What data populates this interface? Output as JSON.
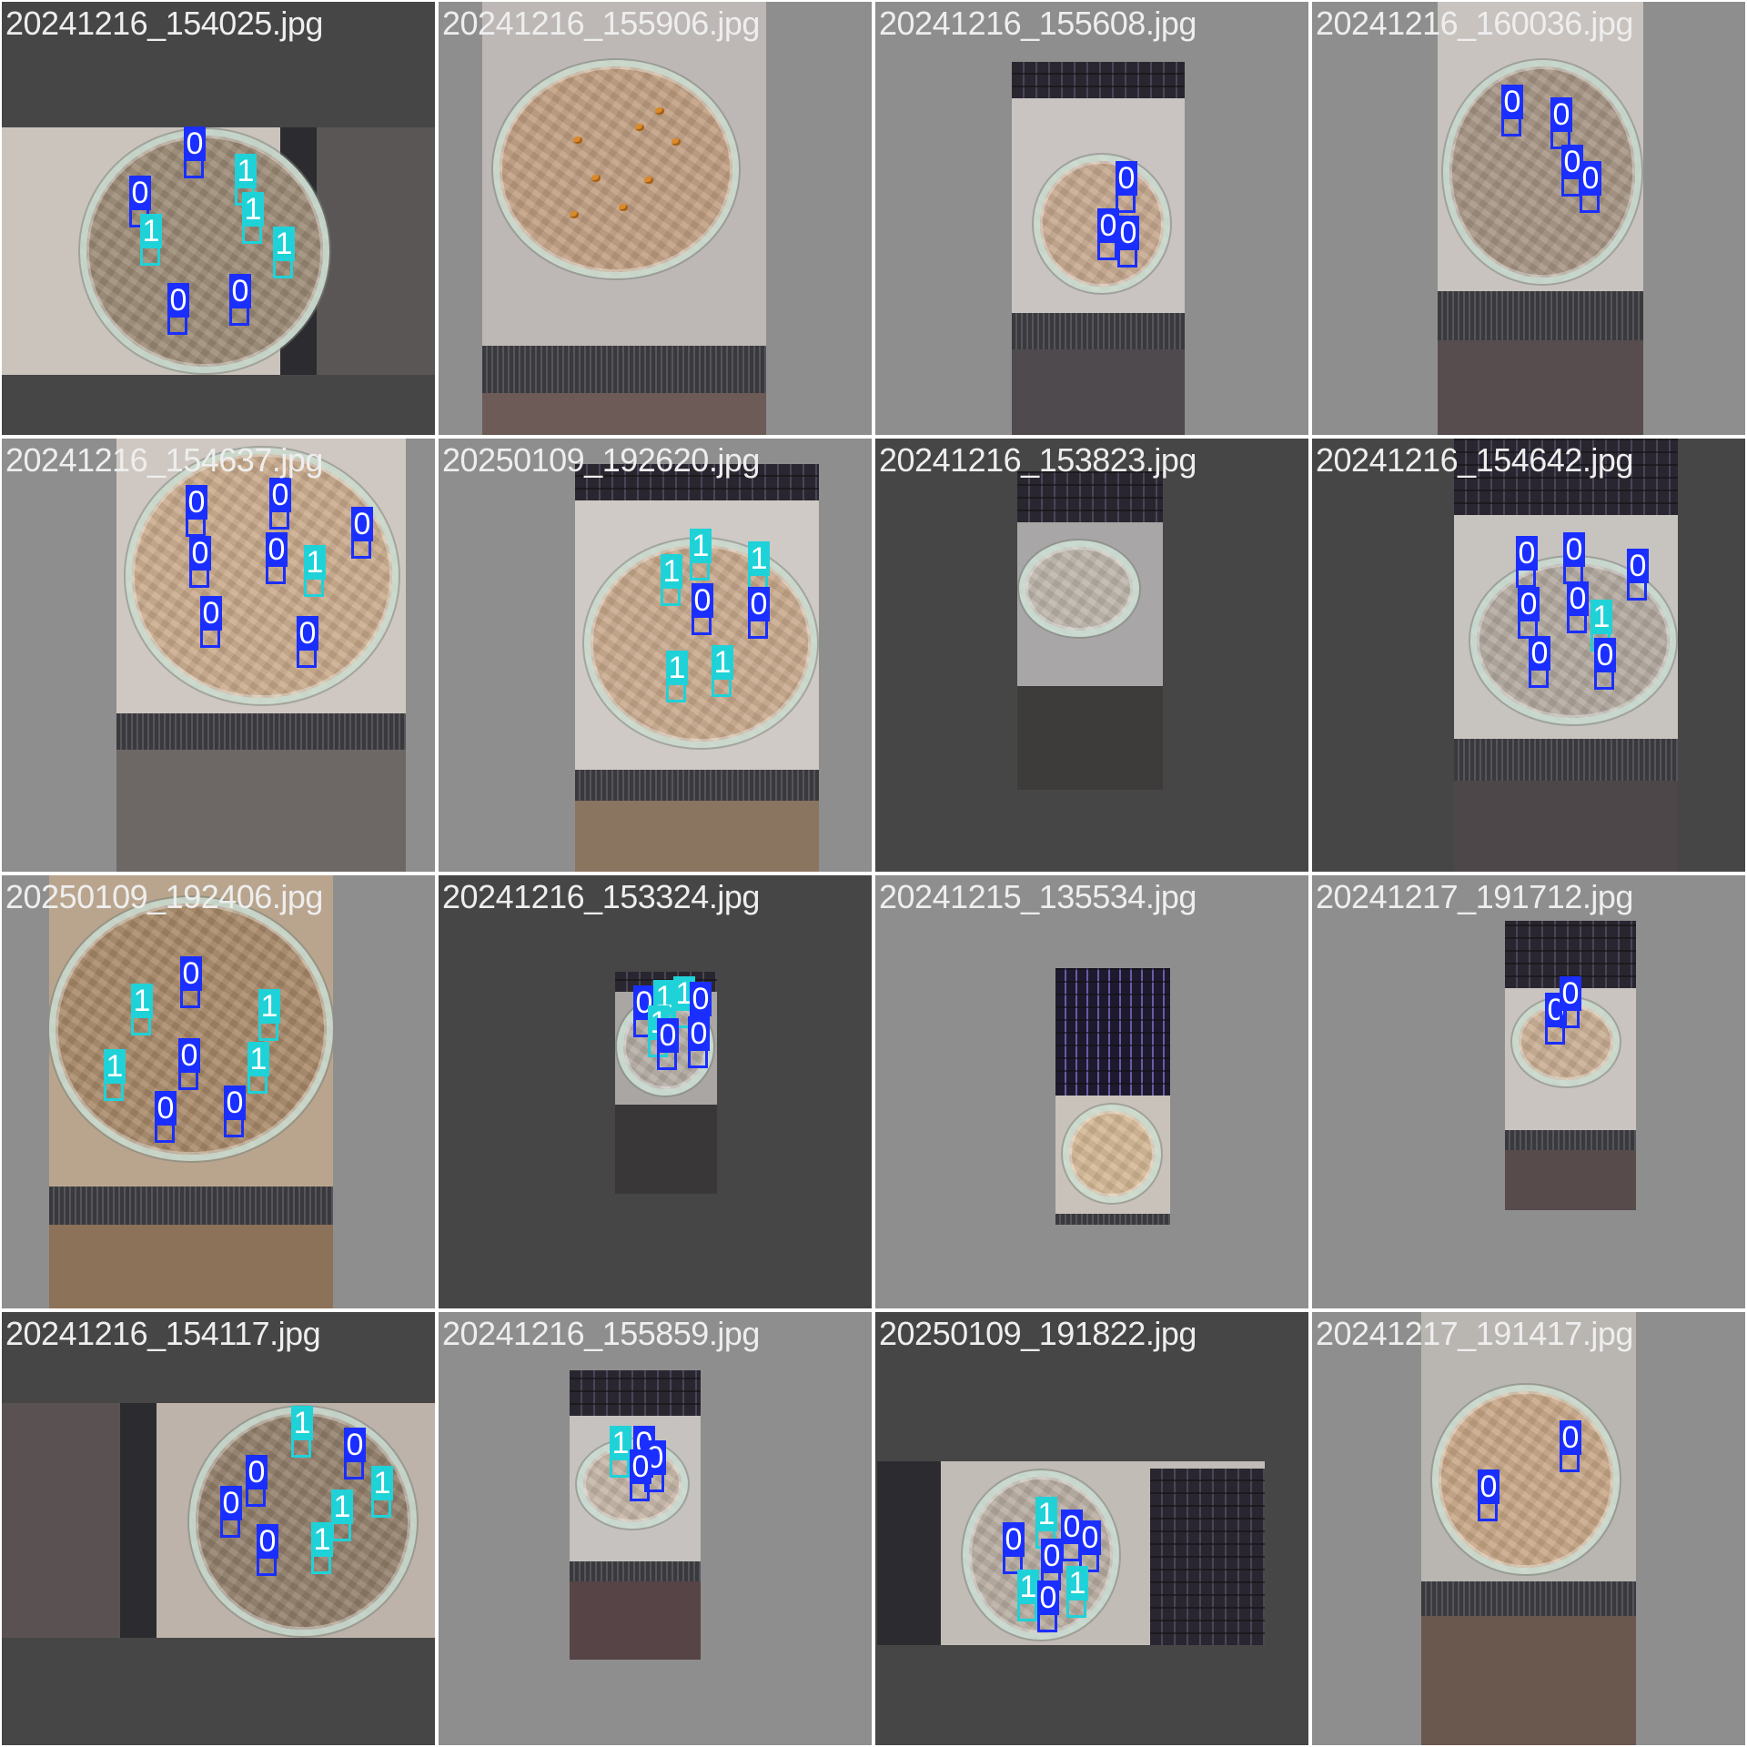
{
  "mosaic": {
    "tiles": [
      {
        "label": "20241216_154025.jpg",
        "detections": [
          "0",
          "1",
          "0",
          "1",
          "1",
          "1",
          "0",
          "0"
        ]
      },
      {
        "label": "20241216_155906.jpg",
        "detections": []
      },
      {
        "label": "20241216_155608.jpg",
        "detections": [
          "0",
          "0",
          "0"
        ]
      },
      {
        "label": "20241216_160036.jpg",
        "detections": [
          "0",
          "0",
          "0",
          "0"
        ]
      },
      {
        "label": "20241216_154637.jpg",
        "detections": [
          "0",
          "0",
          "0",
          "0",
          "0",
          "1",
          "0",
          "0"
        ]
      },
      {
        "label": "20250109_192620.jpg",
        "detections": [
          "1",
          "1",
          "1",
          "0",
          "0",
          "1",
          "1"
        ]
      },
      {
        "label": "20241216_153823.jpg",
        "detections": []
      },
      {
        "label": "20241216_154642.jpg",
        "detections": [
          "0",
          "0",
          "0",
          "0",
          "0",
          "0",
          "1",
          "0",
          "0"
        ]
      },
      {
        "label": "20250109_192406.jpg",
        "detections": [
          "0",
          "1",
          "1",
          "1",
          "0",
          "1",
          "0",
          "0"
        ]
      },
      {
        "label": "20241216_153324.jpg",
        "detections": [
          "0",
          "1",
          "1",
          "0",
          "1",
          "0",
          "0"
        ]
      },
      {
        "label": "20241215_135534.jpg",
        "detections": []
      },
      {
        "label": "20241217_191712.jpg",
        "detections": [
          "0",
          "0"
        ]
      },
      {
        "label": "20241216_154117.jpg",
        "detections": [
          "1",
          "0",
          "0",
          "0",
          "1",
          "1",
          "0",
          "1"
        ]
      },
      {
        "label": "20241216_155859.jpg",
        "detections": [
          "1",
          "0",
          "0",
          "0"
        ]
      },
      {
        "label": "20250109_191822.jpg",
        "detections": [
          "1",
          "0",
          "0",
          "0",
          "0",
          "1",
          "1",
          "0"
        ]
      },
      {
        "label": "20241217_191417.jpg",
        "detections": [
          "0",
          "0"
        ]
      }
    ]
  },
  "classes": {
    "0": {
      "label": "0",
      "color": "#1a2fff"
    },
    "1": {
      "label": "1",
      "color": "#1fd2d8"
    }
  },
  "colors": {
    "grid_line": "#ffffff",
    "tile_bg_dark": "#464646",
    "tile_bg_light": "#8e8e8e",
    "label_text": "#eeeeee",
    "seed": "#d98a2a"
  }
}
